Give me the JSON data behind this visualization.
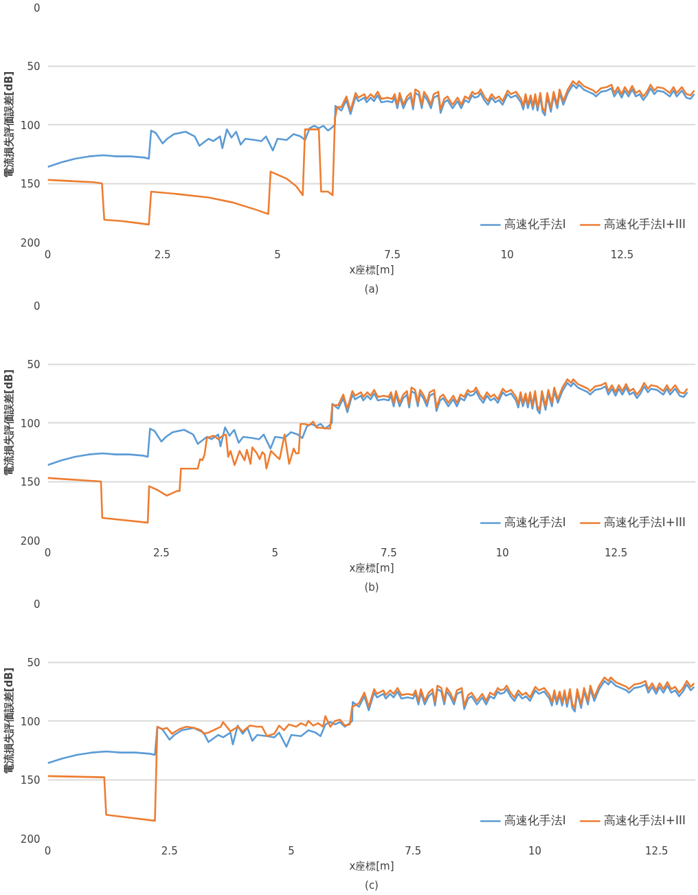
{
  "chart_data": [
    {
      "type": "line",
      "xlabel": "x座標[m]",
      "ylabel": "電流損失評価誤差[dB]",
      "annotations": [
        "(a)"
      ],
      "xlim": [
        0,
        14.1
      ],
      "ylim": [
        200,
        0
      ],
      "xticks": [
        0,
        2.5,
        5,
        7.5,
        10,
        12.5
      ],
      "yticks": [
        0,
        50,
        100,
        150,
        200
      ],
      "grid": "y",
      "legend": "bottom right",
      "series": [
        {
          "name": "高速化手法I",
          "color": "#5b9bd5",
          "x": [
            0,
            0.3,
            0.6,
            0.9,
            1.2,
            1.5,
            1.8,
            2.1,
            2.2,
            2.25,
            2.35,
            2.5,
            2.6,
            2.75,
            3.0,
            3.2,
            3.3,
            3.5,
            3.6,
            3.75,
            3.8,
            3.9,
            4.0,
            4.1,
            4.2,
            4.3,
            4.5,
            4.65,
            4.75,
            4.9,
            5.0,
            5.2,
            5.35,
            5.5,
            5.6,
            5.7,
            5.8,
            5.9,
            6.0,
            6.1,
            6.2,
            6.25,
            6.26,
            6.39,
            6.5,
            6.59,
            6.7,
            6.76,
            6.89,
            6.94,
            7.03,
            7.1,
            7.18,
            7.26,
            7.39,
            7.5,
            7.55,
            7.61,
            7.66,
            7.74,
            7.82,
            7.9,
            7.95,
            8.0,
            8.08,
            8.14,
            8.19,
            8.26,
            8.34,
            8.4,
            8.5,
            8.55,
            8.63,
            8.7,
            8.81,
            8.92,
            9.0,
            9.08,
            9.16,
            9.24,
            9.29,
            9.37,
            9.42,
            9.5,
            9.58,
            9.66,
            9.74,
            9.82,
            9.9,
            10.01,
            10.08,
            10.19,
            10.3,
            10.35,
            10.4,
            10.45,
            10.51,
            10.56,
            10.61,
            10.66,
            10.72,
            10.77,
            10.82,
            10.87,
            10.95,
            11.01,
            11.09,
            11.14,
            11.22,
            11.32,
            11.43,
            11.51,
            11.56,
            11.66,
            11.77,
            11.88,
            11.93,
            12.04,
            12.17,
            12.27,
            12.33,
            12.41,
            12.49,
            12.56,
            12.64,
            12.72,
            12.8,
            12.88,
            12.96,
            13.04,
            13.12,
            13.2,
            13.27,
            13.4,
            13.54,
            13.62,
            13.69,
            13.8,
            13.9,
            13.99,
            14.07
          ],
          "values": [
            136,
            132,
            129,
            127,
            126,
            127,
            127,
            128,
            129,
            105,
            107,
            116,
            112,
            108,
            106,
            110,
            118,
            112,
            114,
            110,
            120,
            104,
            111,
            106,
            117,
            112,
            113,
            114,
            110,
            122,
            112,
            113,
            108,
            110,
            113,
            103,
            101,
            103,
            101,
            105,
            102,
            100,
            84,
            88,
            79,
            91,
            76,
            80,
            77,
            81,
            77,
            80,
            75,
            81,
            80,
            81,
            77,
            86,
            76,
            86,
            79,
            76,
            87,
            73,
            75,
            86,
            75,
            79,
            86,
            77,
            75,
            90,
            81,
            79,
            86,
            80,
            86,
            79,
            81,
            75,
            77,
            76,
            73,
            79,
            83,
            77,
            81,
            79,
            83,
            74,
            77,
            75,
            81,
            87,
            77,
            86,
            78,
            87,
            77,
            88,
            76,
            89,
            92,
            76,
            89,
            75,
            86,
            73,
            83,
            73,
            66,
            69,
            66,
            70,
            72,
            74,
            76,
            72,
            71,
            69,
            76,
            71,
            77,
            71,
            76,
            70,
            76,
            74,
            79,
            75,
            69,
            74,
            71,
            72,
            76,
            71,
            76,
            71,
            77,
            78,
            74
          ]
        },
        {
          "name": "高速化手法I+III",
          "color": "#ed7d31",
          "x": [
            0,
            0.5,
            1.0,
            1.18,
            1.23,
            1.6,
            2.0,
            2.2,
            2.25,
            2.8,
            3.5,
            4.0,
            4.5,
            4.8,
            4.85,
            5.2,
            5.4,
            5.55,
            5.6,
            5.9,
            5.95,
            6.1,
            6.2,
            6.25,
            6.3,
            6.39,
            6.5,
            6.59,
            6.7,
            6.76,
            6.89,
            6.94,
            7.03,
            7.1,
            7.18,
            7.26,
            7.39,
            7.5,
            7.55,
            7.61,
            7.66,
            7.74,
            7.82,
            7.9,
            7.95,
            8.0,
            8.08,
            8.14,
            8.19,
            8.26,
            8.34,
            8.4,
            8.5,
            8.55,
            8.63,
            8.7,
            8.81,
            8.92,
            9.0,
            9.08,
            9.16,
            9.24,
            9.29,
            9.37,
            9.42,
            9.5,
            9.58,
            9.66,
            9.74,
            9.82,
            9.9,
            10.01,
            10.08,
            10.19,
            10.3,
            10.35,
            10.4,
            10.45,
            10.51,
            10.56,
            10.61,
            10.66,
            10.72,
            10.77,
            10.82,
            10.87,
            10.95,
            11.01,
            11.09,
            11.14,
            11.22,
            11.32,
            11.43,
            11.51,
            11.56,
            11.66,
            11.77,
            11.88,
            11.93,
            12.04,
            12.17,
            12.27,
            12.33,
            12.41,
            12.49,
            12.56,
            12.64,
            12.72,
            12.8,
            12.88,
            12.96,
            13.04,
            13.12,
            13.2,
            13.27,
            13.4,
            13.54,
            13.62,
            13.69,
            13.8,
            13.9,
            13.99,
            14.07
          ],
          "values": [
            147,
            148,
            149,
            150,
            181,
            182,
            184,
            185,
            157,
            159,
            162,
            166,
            172,
            176,
            140,
            146,
            152,
            160,
            104,
            104,
            157,
            157,
            160,
            95,
            85,
            85,
            76,
            88,
            73,
            77,
            74,
            78,
            74,
            77,
            72,
            78,
            77,
            78,
            74,
            83,
            73,
            83,
            76,
            73,
            84,
            70,
            72,
            83,
            72,
            76,
            83,
            74,
            72,
            87,
            78,
            76,
            83,
            77,
            83,
            76,
            78,
            72,
            74,
            73,
            70,
            76,
            80,
            74,
            78,
            76,
            80,
            71,
            74,
            72,
            78,
            84,
            74,
            83,
            75,
            84,
            74,
            85,
            73,
            86,
            89,
            73,
            86,
            72,
            83,
            70,
            80,
            70,
            63,
            66,
            63,
            67,
            69,
            71,
            73,
            69,
            68,
            66,
            73,
            68,
            74,
            68,
            73,
            67,
            73,
            71,
            76,
            72,
            66,
            71,
            68,
            69,
            73,
            68,
            73,
            68,
            74,
            75,
            71
          ]
        }
      ]
    },
    {
      "type": "line",
      "xlabel": "x座標[m]",
      "ylabel": "電流損失評価誤差[dB]",
      "annotations": [
        "(b)"
      ],
      "xlim": [
        0,
        14.25
      ],
      "ylim": [
        200,
        0
      ],
      "xticks": [
        0,
        2.5,
        5,
        7.5,
        10,
        12.5
      ],
      "yticks": [
        0,
        50,
        100,
        150,
        200
      ],
      "grid": "y",
      "legend": "bottom right",
      "series": [
        {
          "name": "高速化手法I",
          "color": "#5b9bd5",
          "x": [
            0,
            0.3,
            0.6,
            0.9,
            1.2,
            1.5,
            1.8,
            2.1,
            2.2,
            2.25,
            2.35,
            2.5,
            2.6,
            2.75,
            3.0,
            3.2,
            3.3,
            3.5,
            3.6,
            3.75,
            3.8,
            3.9,
            4.0,
            4.1,
            4.2,
            4.3,
            4.5,
            4.65,
            4.75,
            4.9,
            5.0,
            5.2,
            5.35,
            5.5,
            5.6,
            5.7,
            5.8,
            5.9,
            6.0,
            6.1,
            6.2,
            6.25,
            6.26,
            6.39,
            6.5,
            6.59,
            6.7,
            6.76,
            6.89,
            6.94,
            7.03,
            7.1,
            7.18,
            7.26,
            7.39,
            7.5,
            7.55,
            7.61,
            7.66,
            7.74,
            7.82,
            7.9,
            7.95,
            8.0,
            8.08,
            8.14,
            8.19,
            8.26,
            8.34,
            8.4,
            8.5,
            8.55,
            8.63,
            8.7,
            8.81,
            8.92,
            9.0,
            9.08,
            9.16,
            9.24,
            9.29,
            9.37,
            9.42,
            9.5,
            9.58,
            9.66,
            9.74,
            9.82,
            9.9,
            10.01,
            10.08,
            10.19,
            10.3,
            10.35,
            10.4,
            10.45,
            10.51,
            10.56,
            10.61,
            10.66,
            10.72,
            10.77,
            10.82,
            10.87,
            10.95,
            11.01,
            11.09,
            11.14,
            11.22,
            11.32,
            11.43,
            11.51,
            11.56,
            11.66,
            11.77,
            11.88,
            11.93,
            12.04,
            12.17,
            12.27,
            12.33,
            12.41,
            12.49,
            12.56,
            12.64,
            12.72,
            12.8,
            12.88,
            12.96,
            13.04,
            13.12,
            13.2,
            13.27,
            13.4,
            13.54,
            13.62,
            13.69,
            13.8,
            13.9,
            13.99,
            14.07
          ],
          "values": [
            136,
            132,
            129,
            127,
            126,
            127,
            127,
            128,
            129,
            105,
            107,
            116,
            112,
            108,
            106,
            110,
            118,
            112,
            114,
            110,
            120,
            104,
            111,
            106,
            117,
            112,
            113,
            114,
            110,
            122,
            112,
            113,
            108,
            110,
            113,
            103,
            101,
            103,
            101,
            105,
            102,
            100,
            84,
            88,
            79,
            91,
            76,
            80,
            77,
            81,
            77,
            80,
            75,
            81,
            80,
            81,
            77,
            86,
            76,
            86,
            79,
            76,
            87,
            73,
            75,
            86,
            75,
            79,
            86,
            77,
            75,
            90,
            81,
            79,
            86,
            80,
            86,
            79,
            81,
            75,
            77,
            76,
            73,
            79,
            83,
            77,
            81,
            79,
            83,
            74,
            77,
            75,
            81,
            87,
            77,
            86,
            78,
            87,
            77,
            88,
            76,
            89,
            92,
            76,
            89,
            75,
            86,
            73,
            83,
            73,
            66,
            69,
            66,
            70,
            72,
            74,
            76,
            72,
            71,
            69,
            76,
            71,
            77,
            71,
            76,
            70,
            76,
            74,
            79,
            75,
            69,
            74,
            71,
            72,
            76,
            71,
            76,
            71,
            77,
            78,
            74
          ]
        },
        {
          "name": "高速化手法I+III",
          "color": "#ed7d31",
          "x": [
            0,
            1.17,
            1.2,
            2.2,
            2.23,
            2.4,
            2.62,
            2.85,
            2.9,
            2.93,
            3.3,
            3.35,
            3.4,
            3.45,
            3.5,
            3.65,
            3.75,
            3.85,
            3.92,
            3.97,
            4.02,
            4.11,
            4.22,
            4.33,
            4.38,
            4.46,
            4.5,
            4.6,
            4.66,
            4.72,
            4.77,
            4.81,
            4.91,
            5.04,
            5.1,
            5.21,
            5.31,
            5.41,
            5.46,
            5.52,
            5.56,
            5.65,
            5.75,
            5.84,
            5.91,
            6.21,
            6.26,
            6.39,
            6.5,
            6.59,
            6.7,
            6.76,
            6.89,
            6.94,
            7.03,
            7.1,
            7.18,
            7.26,
            7.39,
            7.5,
            7.55,
            7.61,
            7.66,
            7.74,
            7.82,
            7.9,
            7.95,
            8.0,
            8.08,
            8.14,
            8.19,
            8.26,
            8.34,
            8.4,
            8.5,
            8.55,
            8.63,
            8.7,
            8.81,
            8.92,
            9.0,
            9.08,
            9.16,
            9.24,
            9.29,
            9.37,
            9.42,
            9.5,
            9.58,
            9.66,
            9.74,
            9.82,
            9.9,
            10.01,
            10.08,
            10.19,
            10.3,
            10.35,
            10.4,
            10.45,
            10.51,
            10.56,
            10.61,
            10.66,
            10.72,
            10.77,
            10.82,
            10.87,
            10.95,
            11.01,
            11.09,
            11.14,
            11.22,
            11.32,
            11.43,
            11.51,
            11.56,
            11.66,
            11.77,
            11.88,
            11.93,
            12.04,
            12.17,
            12.27,
            12.33,
            12.41,
            12.49,
            12.56,
            12.64,
            12.72,
            12.8,
            12.88,
            12.96,
            13.04,
            13.12,
            13.2,
            13.27,
            13.4,
            13.54,
            13.62,
            13.69,
            13.8,
            13.9,
            13.99,
            14.07
          ],
          "values": [
            147,
            150,
            181,
            185,
            154,
            157,
            162,
            158,
            158,
            139,
            139,
            131,
            132,
            127,
            113,
            111,
            114,
            111,
            110,
            129,
            124,
            136,
            124,
            132,
            123,
            135,
            121,
            126,
            131,
            125,
            127,
            139,
            124,
            129,
            131,
            110,
            135,
            122,
            126,
            126,
            101,
            101,
            102,
            99,
            104,
            105,
            85,
            85,
            76,
            88,
            73,
            77,
            74,
            78,
            74,
            77,
            72,
            78,
            77,
            78,
            74,
            83,
            73,
            83,
            76,
            73,
            84,
            70,
            72,
            83,
            72,
            76,
            83,
            74,
            72,
            87,
            78,
            76,
            83,
            77,
            83,
            76,
            78,
            72,
            74,
            73,
            70,
            76,
            80,
            74,
            78,
            76,
            80,
            71,
            74,
            72,
            78,
            84,
            74,
            83,
            75,
            84,
            74,
            85,
            73,
            86,
            89,
            73,
            86,
            72,
            83,
            70,
            80,
            70,
            63,
            66,
            63,
            67,
            69,
            71,
            73,
            69,
            68,
            66,
            73,
            68,
            74,
            68,
            73,
            67,
            73,
            71,
            76,
            72,
            66,
            71,
            68,
            69,
            73,
            68,
            73,
            68,
            74,
            75,
            71
          ]
        }
      ]
    },
    {
      "type": "line",
      "xlabel": "x座標[m]",
      "ylabel": "電流損失評価誤差[dB]",
      "annotations": [
        "(c)"
      ],
      "xlim": [
        0,
        13.3
      ],
      "ylim": [
        200,
        0
      ],
      "xticks": [
        0,
        2.5,
        5,
        7.5,
        10,
        12.5
      ],
      "yticks": [
        0,
        50,
        100,
        150,
        200
      ],
      "grid": "y",
      "legend": "bottom right",
      "series": [
        {
          "name": "高速化手法I",
          "color": "#5b9bd5",
          "x": [
            0,
            0.3,
            0.6,
            0.9,
            1.2,
            1.5,
            1.8,
            2.1,
            2.2,
            2.25,
            2.35,
            2.5,
            2.6,
            2.75,
            3.0,
            3.2,
            3.3,
            3.5,
            3.6,
            3.75,
            3.8,
            3.9,
            4.0,
            4.1,
            4.2,
            4.3,
            4.5,
            4.65,
            4.75,
            4.9,
            5.0,
            5.2,
            5.35,
            5.5,
            5.6,
            5.7,
            5.8,
            5.9,
            6.0,
            6.1,
            6.2,
            6.25,
            6.26,
            6.39,
            6.5,
            6.59,
            6.7,
            6.76,
            6.89,
            6.94,
            7.03,
            7.1,
            7.18,
            7.26,
            7.39,
            7.5,
            7.55,
            7.61,
            7.66,
            7.74,
            7.82,
            7.9,
            7.95,
            8.0,
            8.08,
            8.14,
            8.19,
            8.26,
            8.34,
            8.4,
            8.5,
            8.55,
            8.63,
            8.7,
            8.81,
            8.92,
            9.0,
            9.08,
            9.16,
            9.24,
            9.29,
            9.37,
            9.42,
            9.5,
            9.58,
            9.66,
            9.74,
            9.82,
            9.9,
            10.01,
            10.08,
            10.19,
            10.3,
            10.35,
            10.4,
            10.45,
            10.51,
            10.56,
            10.61,
            10.66,
            10.72,
            10.77,
            10.82,
            10.87,
            10.95,
            11.01,
            11.09,
            11.14,
            11.22,
            11.32,
            11.43,
            11.51,
            11.56,
            11.66,
            11.77,
            11.88,
            11.93,
            12.04,
            12.17,
            12.27,
            12.33,
            12.41,
            12.49,
            12.56,
            12.64,
            12.72,
            12.8,
            12.88,
            12.96,
            13.04,
            13.12,
            13.2,
            13.27
          ],
          "values": [
            136,
            132,
            129,
            127,
            126,
            127,
            127,
            128,
            129,
            105,
            107,
            116,
            112,
            108,
            106,
            110,
            118,
            112,
            114,
            110,
            120,
            104,
            111,
            106,
            117,
            112,
            113,
            114,
            110,
            122,
            112,
            113,
            108,
            110,
            113,
            103,
            101,
            103,
            101,
            105,
            102,
            100,
            84,
            88,
            79,
            91,
            76,
            80,
            77,
            81,
            77,
            80,
            75,
            81,
            80,
            81,
            77,
            86,
            76,
            86,
            79,
            76,
            87,
            73,
            75,
            86,
            75,
            79,
            86,
            77,
            75,
            90,
            81,
            79,
            86,
            80,
            86,
            79,
            81,
            75,
            77,
            76,
            73,
            79,
            83,
            77,
            81,
            79,
            83,
            74,
            77,
            75,
            81,
            87,
            77,
            86,
            78,
            87,
            77,
            88,
            76,
            89,
            92,
            76,
            89,
            75,
            86,
            73,
            83,
            73,
            66,
            69,
            66,
            70,
            72,
            74,
            76,
            72,
            71,
            69,
            76,
            71,
            77,
            71,
            76,
            70,
            76,
            74,
            79,
            75,
            69,
            74,
            71
          ]
        },
        {
          "name": "高速化手法I+III",
          "color": "#ed7d31",
          "x": [
            0,
            1.16,
            1.2,
            1.6,
            2.2,
            2.25,
            2.35,
            2.45,
            2.55,
            2.7,
            2.85,
            3.0,
            3.15,
            3.2,
            3.3,
            3.45,
            3.55,
            3.6,
            3.75,
            3.9,
            4.0,
            4.15,
            4.3,
            4.4,
            4.5,
            4.65,
            4.75,
            4.85,
            4.95,
            5.1,
            5.2,
            5.3,
            5.35,
            5.45,
            5.55,
            5.65,
            5.7,
            5.8,
            5.9,
            6.0,
            6.1,
            6.2,
            6.25,
            6.39,
            6.5,
            6.59,
            6.7,
            6.76,
            6.89,
            6.94,
            7.03,
            7.1,
            7.18,
            7.26,
            7.39,
            7.5,
            7.55,
            7.61,
            7.66,
            7.74,
            7.82,
            7.9,
            7.95,
            8.0,
            8.08,
            8.14,
            8.19,
            8.26,
            8.34,
            8.4,
            8.5,
            8.55,
            8.63,
            8.7,
            8.81,
            8.92,
            9.0,
            9.08,
            9.16,
            9.24,
            9.29,
            9.37,
            9.42,
            9.5,
            9.58,
            9.66,
            9.74,
            9.82,
            9.9,
            10.01,
            10.08,
            10.19,
            10.3,
            10.35,
            10.4,
            10.45,
            10.51,
            10.56,
            10.61,
            10.66,
            10.72,
            10.77,
            10.82,
            10.87,
            10.95,
            11.01,
            11.09,
            11.14,
            11.22,
            11.32,
            11.43,
            11.51,
            11.56,
            11.66,
            11.77,
            11.88,
            11.93,
            12.04,
            12.17,
            12.27,
            12.33,
            12.41,
            12.49,
            12.56,
            12.64,
            12.72,
            12.8,
            12.88,
            12.96,
            13.04,
            13.12,
            13.2,
            13.27
          ],
          "values": [
            147,
            148,
            180,
            182,
            185,
            105,
            107,
            106,
            111,
            107,
            105,
            106,
            108,
            111,
            110,
            107,
            105,
            101,
            109,
            105,
            109,
            104,
            105,
            105,
            113,
            111,
            104,
            108,
            103,
            105,
            102,
            104,
            100,
            104,
            102,
            105,
            96,
            105,
            100,
            99,
            104,
            103,
            88,
            85,
            76,
            88,
            73,
            77,
            74,
            78,
            74,
            77,
            72,
            78,
            77,
            78,
            74,
            83,
            73,
            83,
            76,
            73,
            84,
            70,
            72,
            83,
            72,
            76,
            83,
            74,
            72,
            87,
            78,
            76,
            83,
            77,
            83,
            76,
            78,
            72,
            74,
            73,
            70,
            76,
            80,
            74,
            78,
            76,
            80,
            71,
            74,
            72,
            78,
            84,
            74,
            83,
            75,
            84,
            74,
            85,
            73,
            86,
            89,
            73,
            86,
            72,
            83,
            70,
            80,
            70,
            63,
            66,
            63,
            67,
            69,
            71,
            73,
            69,
            68,
            66,
            73,
            68,
            74,
            68,
            73,
            67,
            73,
            71,
            76,
            72,
            66,
            71,
            68
          ]
        }
      ]
    }
  ]
}
